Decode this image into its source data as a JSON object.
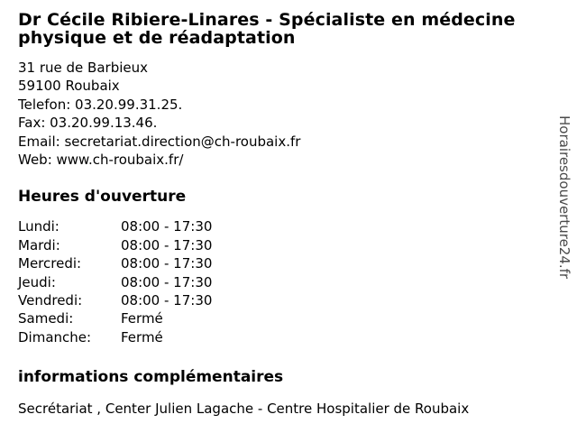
{
  "header": {
    "title": "Dr Cécile Ribiere-Linares - Spécialiste en médecine physique et de réadaptation"
  },
  "contact": {
    "address_line1": "31 rue de Barbieux",
    "address_line2": "59100 Roubaix",
    "phone_line": "Telefon: 03.20.99.31.25.",
    "fax_line": "Fax: 03.20.99.13.46.",
    "email_line": "Email: secretariat.direction@ch-roubaix.fr",
    "web_line": "Web: www.ch-roubaix.fr/"
  },
  "hours": {
    "heading": "Heures d'ouverture",
    "rows": [
      {
        "day": "Lundi:",
        "time": "08:00 - 17:30"
      },
      {
        "day": "Mardi:",
        "time": "08:00 - 17:30"
      },
      {
        "day": "Mercredi:",
        "time": "08:00 - 17:30"
      },
      {
        "day": "Jeudi:",
        "time": "08:00 - 17:30"
      },
      {
        "day": "Vendredi:",
        "time": "08:00 - 17:30"
      },
      {
        "day": "Samedi:",
        "time": "Fermé"
      },
      {
        "day": "Dimanche:",
        "time": "Fermé"
      }
    ]
  },
  "additional_info": {
    "heading": "informations complémentaires",
    "text": "Secrétariat , Center Julien Lagache - Centre Hospitalier de Roubaix"
  },
  "watermark": "Horairesdouverture24.fr",
  "colors": {
    "background": "#ffffff",
    "text": "#000000",
    "watermark": "#4a4a4a"
  }
}
